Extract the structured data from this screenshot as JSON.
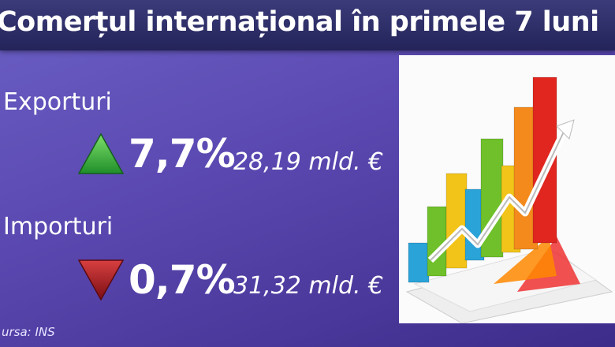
{
  "header": {
    "title": "Comerțul internațional în primele 7 luni"
  },
  "items": [
    {
      "label": "Exporturi",
      "direction": "up",
      "change": "7,7%",
      "value": "28,19 mld. €"
    },
    {
      "label": "Importuri",
      "direction": "down",
      "change": "0,7%",
      "value": "31,32 mld. €"
    }
  ],
  "source": "ursa: INS"
}
